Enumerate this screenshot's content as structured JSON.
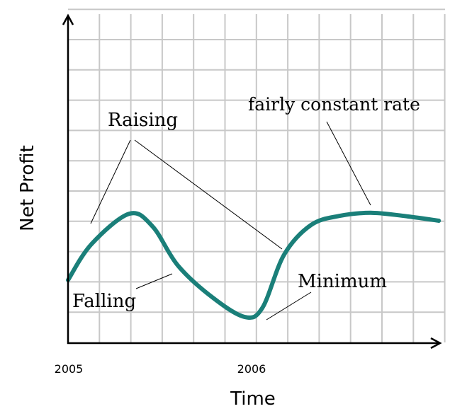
{
  "chart_data": {
    "type": "line",
    "title": "",
    "xlabel": "Time",
    "ylabel": "Net Profit",
    "x_tick_labels": [
      "2005",
      "2006"
    ],
    "x_ticks": [
      2005,
      2006
    ],
    "xlim": [
      2005,
      2007.08
    ],
    "ylim": [
      0,
      10.8
    ],
    "grid": true,
    "series": [
      {
        "name": "Net Profit",
        "color": "#1a7f79",
        "x": [
          2005.0,
          2005.13,
          2005.34,
          2005.47,
          2005.61,
          2005.8,
          2005.98,
          2006.08,
          2006.2,
          2006.35,
          2006.51,
          2006.69,
          2006.89,
          2007.06
        ],
        "y": [
          2.05,
          3.23,
          4.23,
          3.81,
          2.53,
          1.49,
          0.84,
          1.14,
          2.88,
          3.86,
          4.16,
          4.26,
          4.14,
          4.0
        ]
      }
    ],
    "annotations": {
      "raising": "Raising",
      "falling": "Falling",
      "minimum": "Minimum",
      "constant": "fairly constant rate"
    }
  }
}
